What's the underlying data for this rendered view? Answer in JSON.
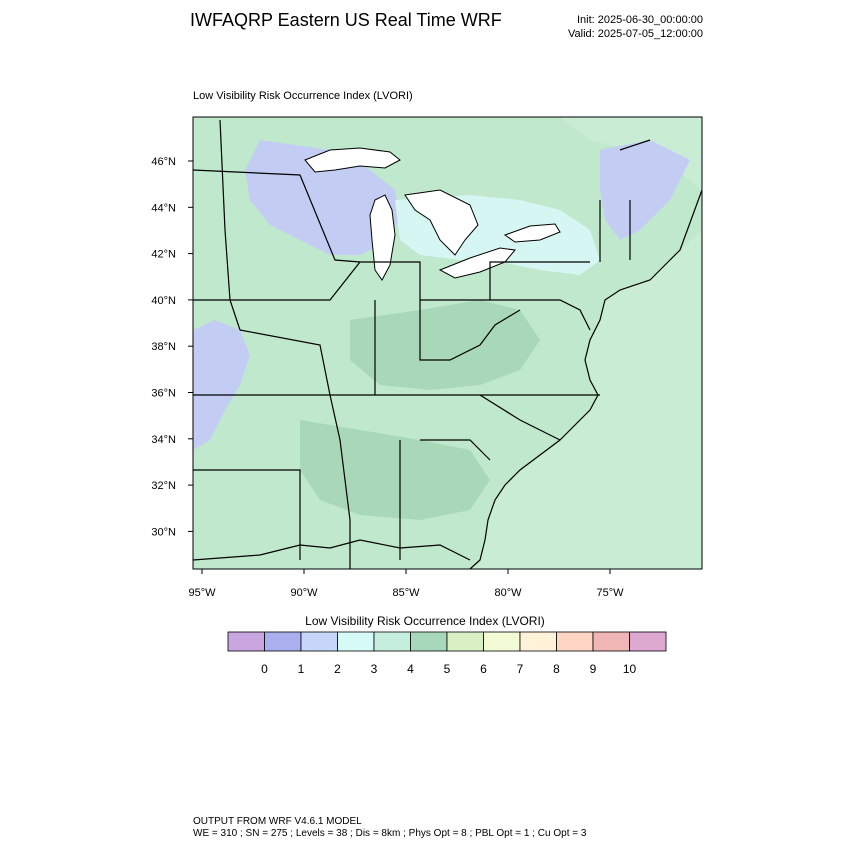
{
  "header": {
    "title": "IWFAQRP Eastern US Real Time WRF",
    "init": "Init: 2025-06-30_00:00:00",
    "valid": "Valid: 2025-07-05_12:00:00"
  },
  "map": {
    "subtitle": "Low Visibility Risk Occurrence Index   (LVORI)",
    "lat_labels": [
      "46°N",
      "44°N",
      "42°N",
      "40°N",
      "38°N",
      "36°N",
      "34°N",
      "32°N",
      "30°N"
    ],
    "lon_labels": [
      "95°W",
      "90°W",
      "85°W",
      "80°W",
      "75°W"
    ],
    "colors": {
      "ocean": "#c8ecd4",
      "land_low": "#bfe8cc",
      "land_mid": "#a8d8b8",
      "blue_zone": "#c3cdf4",
      "cyan_zone": "#d6f6f4",
      "lake": "#ffffff",
      "border": "#000000"
    }
  },
  "colorbar": {
    "title": "Low Visibility Risk Occurrence Index  (LVORI)",
    "colors": [
      "#c9a6e0",
      "#aab0ee",
      "#c6d6fa",
      "#d6faf6",
      "#c6eedc",
      "#a8d8bc",
      "#d8f0c4",
      "#f2fad6",
      "#fff2d8",
      "#ffd6c6",
      "#f0b6b6",
      "#dca8d0"
    ],
    "labels": [
      "0",
      "1",
      "2",
      "3",
      "4",
      "5",
      "6",
      "7",
      "8",
      "9",
      "10"
    ]
  },
  "footer": {
    "line1": "OUTPUT FROM WRF V4.6.1 MODEL",
    "line2": "WE = 310 ; SN = 275 ; Levels = 38 ; Dis = 8km ; Phys Opt = 8 ; PBL Opt = 1 ; Cu Opt = 3"
  }
}
